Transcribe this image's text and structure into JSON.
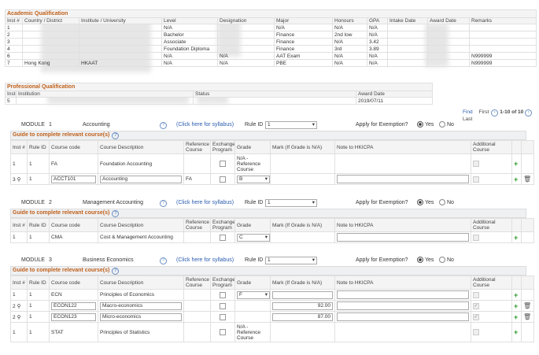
{
  "academic": {
    "title": "Academic Qualification",
    "headers": [
      "Inst #",
      "Country / District",
      "Institute / University",
      "Level",
      "Designation",
      "Major",
      "Honours",
      "GPA",
      "Intake Date",
      "Award Date",
      "Remarks"
    ],
    "rows": [
      [
        "1",
        null,
        null,
        "N/A",
        null,
        "N/A",
        "N/A",
        "N/A",
        null,
        null,
        null
      ],
      [
        "2",
        null,
        null,
        "Bachelor",
        null,
        "Finance",
        "2nd low",
        "N/A",
        null,
        null,
        null
      ],
      [
        "3",
        null,
        null,
        "Associate",
        null,
        "Finance",
        "N/A",
        "3.42",
        null,
        null,
        null
      ],
      [
        "4",
        null,
        null,
        "Foundation Diploma",
        null,
        "Finance",
        "3rd",
        "3.89",
        null,
        null,
        null
      ],
      [
        "6",
        null,
        null,
        "N/A",
        "N/A",
        "AAT Exam",
        "N/A",
        "N/A",
        null,
        null,
        "N999999"
      ],
      [
        "7",
        "Hong Kong",
        "HKAAT",
        "N/A",
        "N/A",
        "PBE",
        "N/A",
        "N/A",
        null,
        null,
        "N999999"
      ]
    ]
  },
  "professional": {
    "title": "Professional Qualification",
    "headers": [
      "Inst#",
      "Institution",
      "Status",
      "Award Date"
    ],
    "rows": [
      [
        "5",
        null,
        null,
        "2019/07/11"
      ]
    ]
  },
  "pager": {
    "find": "Find",
    "first": "First",
    "range": "1-10 of 10",
    "last": "Last"
  },
  "labels": {
    "module": "MODULE",
    "syllabus": "(Click here for syllabus)",
    "rule_id": "Rule ID",
    "apply": "Apply for Exemption?",
    "yes": "Yes",
    "no": "No",
    "guide": "Guide to complete relevant course(s)",
    "headers": [
      "Inst #",
      "Rule ID",
      "Course code",
      "Course Description",
      "Reference Course",
      "Exchange Program",
      "Grade",
      "Mark (If Grade is N/A)",
      "Note to HKICPA",
      "Additional Course"
    ]
  },
  "modules": [
    {
      "number": "1",
      "name": "Accounting",
      "rule": "1",
      "rows": [
        {
          "inst": "1",
          "rule": "1",
          "code": "FA",
          "desc": "Foundation Accounting",
          "grade": "N/A - Reference Course"
        },
        {
          "inst": "3",
          "rule": "1",
          "code": "ACCT101",
          "desc": "Accounting",
          "ref": "FA",
          "grade": "B",
          "grade_select": true,
          "editable": true
        }
      ]
    },
    {
      "number": "2",
      "name": "Management Accounting",
      "rule": "1",
      "rows": [
        {
          "inst": "1",
          "rule": "1",
          "code": "CMA",
          "desc": "Cost & Management Accounting",
          "grade": "C",
          "grade_select": true
        }
      ]
    },
    {
      "number": "3",
      "name": "Business Economics",
      "rule": "1",
      "rows": [
        {
          "inst": "1",
          "rule": "1",
          "code": "ECN",
          "desc": "Principles of Economics",
          "grade": "F",
          "grade_select": true,
          "mark_input": true
        },
        {
          "inst": "2",
          "rule": "1",
          "code": "ECON122",
          "desc": "Macro-economics",
          "mark": "92.00",
          "mark_input": true,
          "editable": true,
          "additional_checked": true
        },
        {
          "inst": "2",
          "rule": "1",
          "code": "ECON123",
          "desc": "Micro-economics",
          "mark": "87.00",
          "mark_input": true,
          "editable": true,
          "additional_checked": true
        },
        {
          "inst": "1",
          "rule": "1",
          "code": "STAT",
          "desc": "Principles of Statistics",
          "grade": "N/A - Reference Course"
        }
      ]
    }
  ]
}
